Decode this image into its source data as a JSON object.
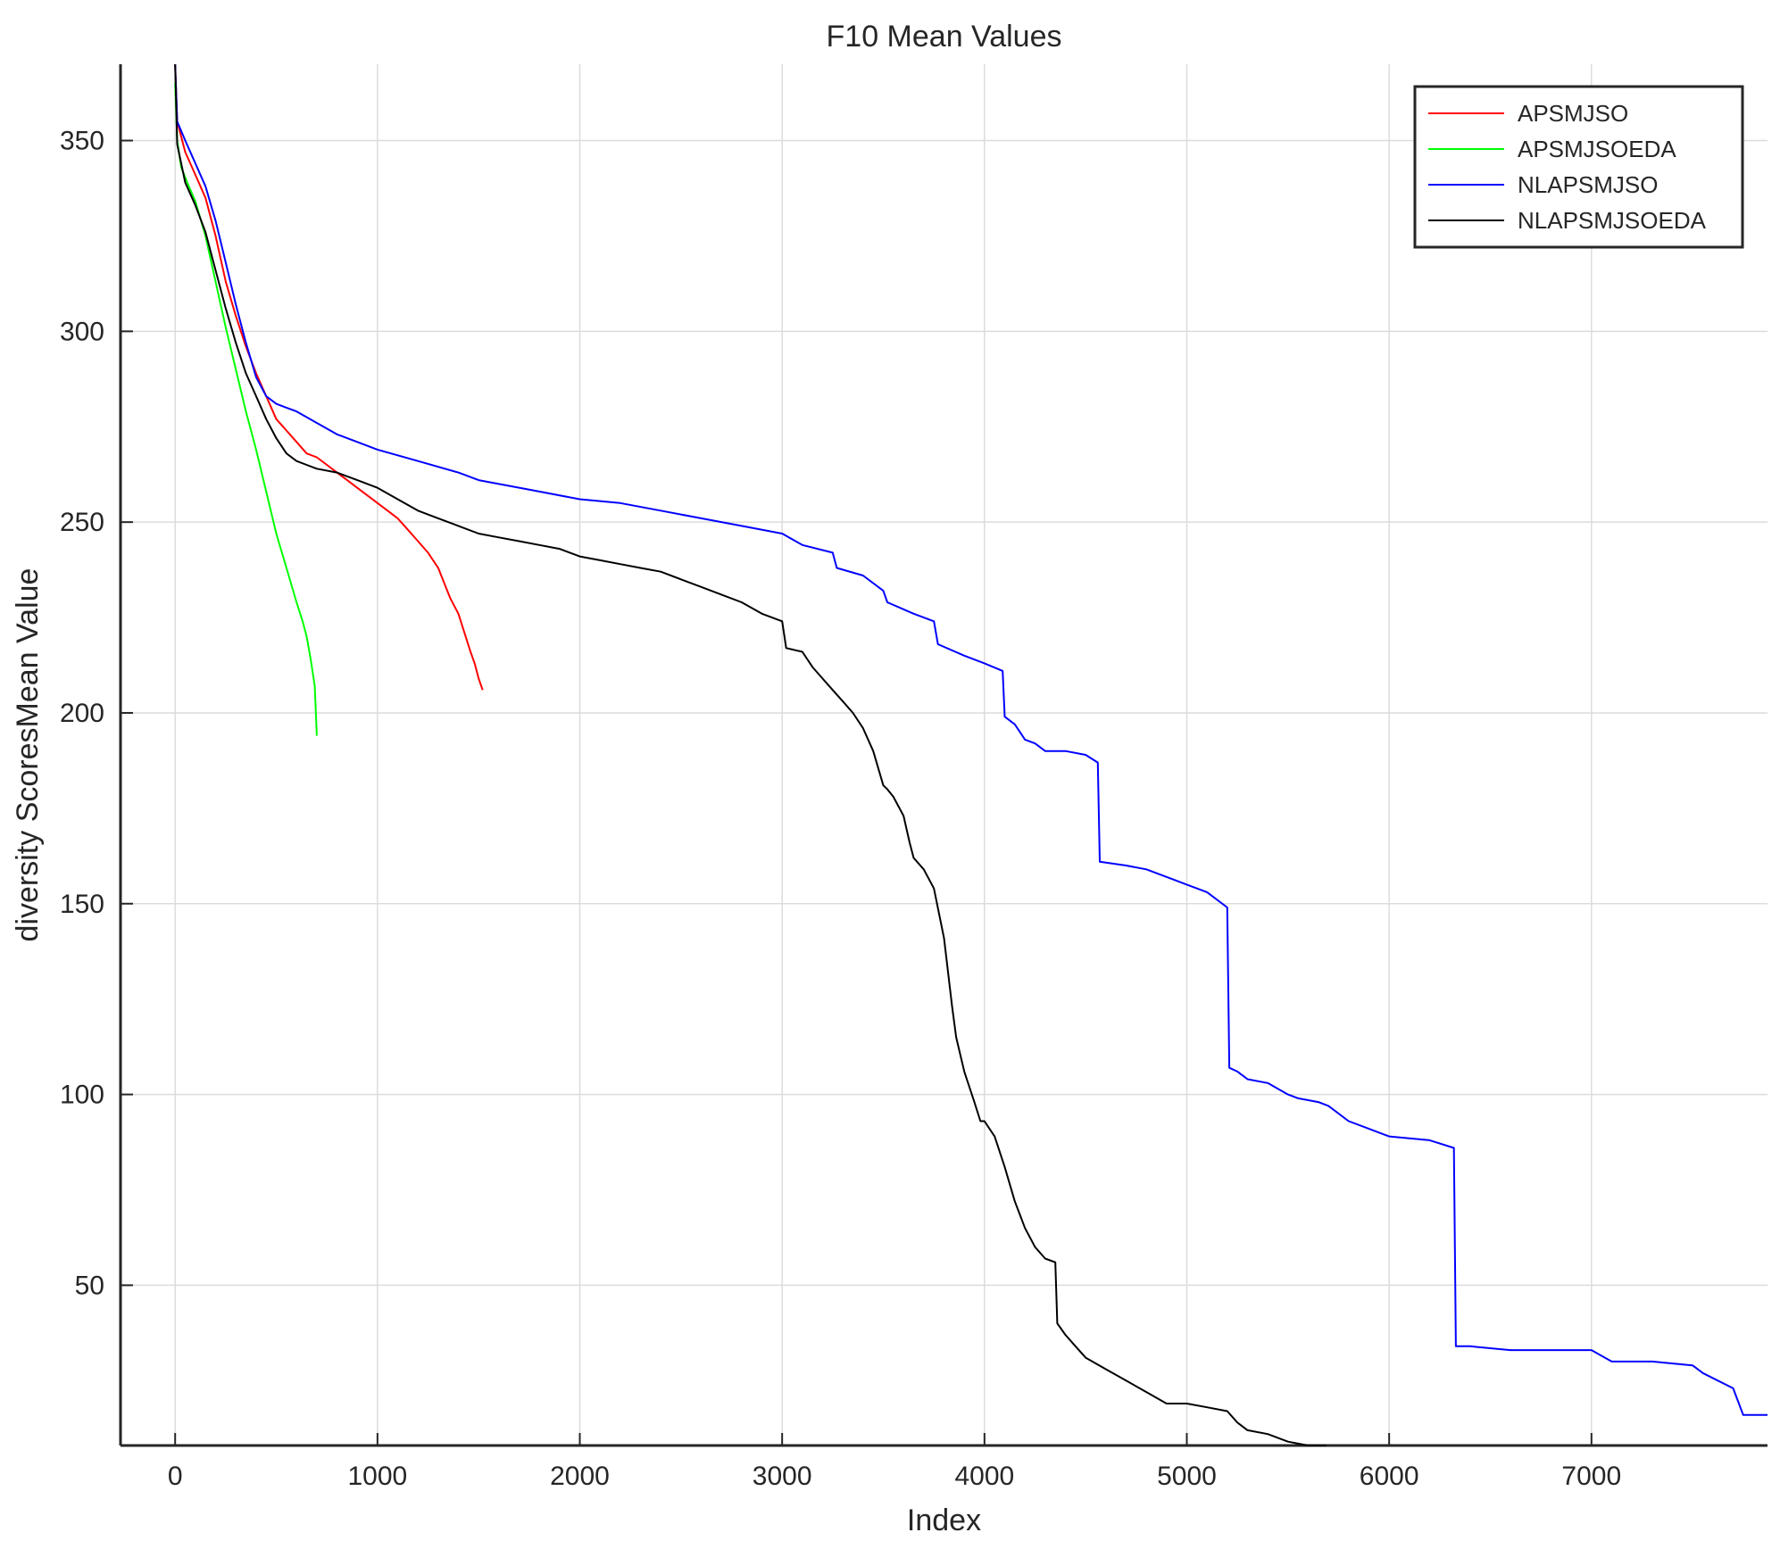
{
  "chart_data": {
    "type": "line",
    "title": "F10 Mean Values",
    "xlabel": "Index",
    "ylabel": "diversity ScoresMean Value",
    "xlim": [
      -270,
      7870
    ],
    "ylim": [
      8,
      370
    ],
    "xticks": [
      0,
      1000,
      2000,
      3000,
      4000,
      5000,
      6000,
      7000
    ],
    "xtick_labels": [
      "0",
      "1000",
      "2000",
      "3000",
      "4000",
      "5000",
      "6000",
      "7000"
    ],
    "yticks": [
      50,
      100,
      150,
      200,
      250,
      300,
      350
    ],
    "ytick_labels": [
      "50",
      "100",
      "150",
      "200",
      "250",
      "300",
      "350"
    ],
    "grid": true,
    "legend_position": "top-right",
    "series": [
      {
        "name": "APSMJSO",
        "color": "#ff0000",
        "x": [
          0,
          10,
          50,
          100,
          150,
          200,
          250,
          300,
          350,
          400,
          450,
          500,
          550,
          600,
          650,
          700,
          750,
          800,
          850,
          900,
          950,
          1000,
          1050,
          1100,
          1150,
          1200,
          1250,
          1300,
          1330,
          1360,
          1400,
          1430,
          1460,
          1480,
          1500,
          1520
        ],
        "y": [
          370,
          355,
          347,
          341,
          335,
          325,
          313,
          304,
          296,
          289,
          283,
          277,
          274,
          271,
          268,
          267,
          265,
          263,
          261,
          259,
          257,
          255,
          253,
          251,
          248,
          245,
          242,
          238,
          234,
          230,
          226,
          221,
          216,
          213,
          209,
          206
        ]
      },
      {
        "name": "APSMJSOEDA",
        "color": "#00ff00",
        "x": [
          0,
          10,
          30,
          60,
          100,
          150,
          200,
          250,
          300,
          350,
          400,
          450,
          500,
          550,
          600,
          630,
          650,
          670,
          690,
          700
        ],
        "y": [
          365,
          350,
          343,
          339,
          334,
          325,
          313,
          301,
          290,
          279,
          269,
          258,
          247,
          238,
          229,
          224,
          220,
          214,
          207,
          194
        ]
      },
      {
        "name": "NLAPSMJSO",
        "color": "#0000ff",
        "x": [
          0,
          10,
          50,
          100,
          150,
          200,
          250,
          300,
          350,
          400,
          450,
          500,
          550,
          600,
          700,
          800,
          900,
          1000,
          1200,
          1400,
          1500,
          1600,
          1800,
          2000,
          2200,
          2400,
          2600,
          2800,
          3000,
          3100,
          3250,
          3270,
          3400,
          3500,
          3520,
          3650,
          3750,
          3770,
          3900,
          4000,
          4090,
          4100,
          4150,
          4200,
          4250,
          4300,
          4400,
          4500,
          4560,
          4570,
          4700,
          4800,
          4900,
          5000,
          5100,
          5200,
          5210,
          5250,
          5300,
          5400,
          5500,
          5550,
          5650,
          5700,
          5800,
          6000,
          6200,
          6320,
          6330,
          6400,
          6600,
          6800,
          7000,
          7100,
          7300,
          7500,
          7550,
          7700,
          7750,
          7870
        ],
        "y": [
          370,
          355,
          350,
          344,
          338,
          329,
          318,
          307,
          297,
          288,
          283,
          281,
          280,
          279,
          276,
          273,
          271,
          269,
          266,
          263,
          261,
          260,
          258,
          256,
          255,
          253,
          251,
          249,
          247,
          244,
          242,
          238,
          236,
          232,
          229,
          226,
          224,
          218,
          215,
          213,
          211,
          199,
          197,
          193,
          192,
          190,
          190,
          189,
          187,
          161,
          160,
          159,
          157,
          155,
          153,
          149,
          107,
          106,
          104,
          103,
          100,
          99,
          98,
          97,
          93,
          89,
          88,
          86,
          34,
          34,
          33,
          33,
          33,
          30,
          30,
          29,
          27,
          23,
          16,
          16
        ]
      },
      {
        "name": "NLAPSMJSOEDA",
        "color": "#000000",
        "x": [
          0,
          10,
          50,
          100,
          150,
          200,
          250,
          300,
          350,
          400,
          450,
          500,
          550,
          600,
          650,
          700,
          800,
          900,
          1000,
          1100,
          1200,
          1300,
          1400,
          1500,
          1600,
          1700,
          1800,
          1900,
          2000,
          2100,
          2200,
          2300,
          2400,
          2500,
          2600,
          2700,
          2800,
          2900,
          3000,
          3020,
          3100,
          3150,
          3200,
          3250,
          3300,
          3350,
          3400,
          3450,
          3500,
          3520,
          3550,
          3600,
          3630,
          3650,
          3700,
          3750,
          3800,
          3840,
          3860,
          3900,
          3950,
          3980,
          4000,
          4050,
          4100,
          4150,
          4200,
          4250,
          4300,
          4350,
          4360,
          4400,
          4450,
          4500,
          4600,
          4700,
          4800,
          4900,
          5000,
          5100,
          5200,
          5250,
          5300,
          5400,
          5500,
          5600,
          5690
        ],
        "y": [
          370,
          349,
          339,
          333,
          326,
          316,
          306,
          297,
          289,
          283,
          277,
          272,
          268,
          266,
          265,
          264,
          263,
          261,
          259,
          256,
          253,
          251,
          249,
          247,
          246,
          245,
          244,
          243,
          241,
          240,
          239,
          238,
          237,
          235,
          233,
          231,
          229,
          226,
          224,
          217,
          216,
          212,
          209,
          206,
          203,
          200,
          196,
          190,
          181,
          180,
          178,
          173,
          166,
          162,
          159,
          154,
          141,
          123,
          115,
          106,
          98,
          93,
          93,
          89,
          81,
          72,
          65,
          60,
          57,
          56,
          40,
          37,
          34,
          31,
          28,
          25,
          22,
          19,
          19,
          18,
          17,
          14,
          12,
          11,
          9,
          8,
          8
        ]
      }
    ]
  }
}
